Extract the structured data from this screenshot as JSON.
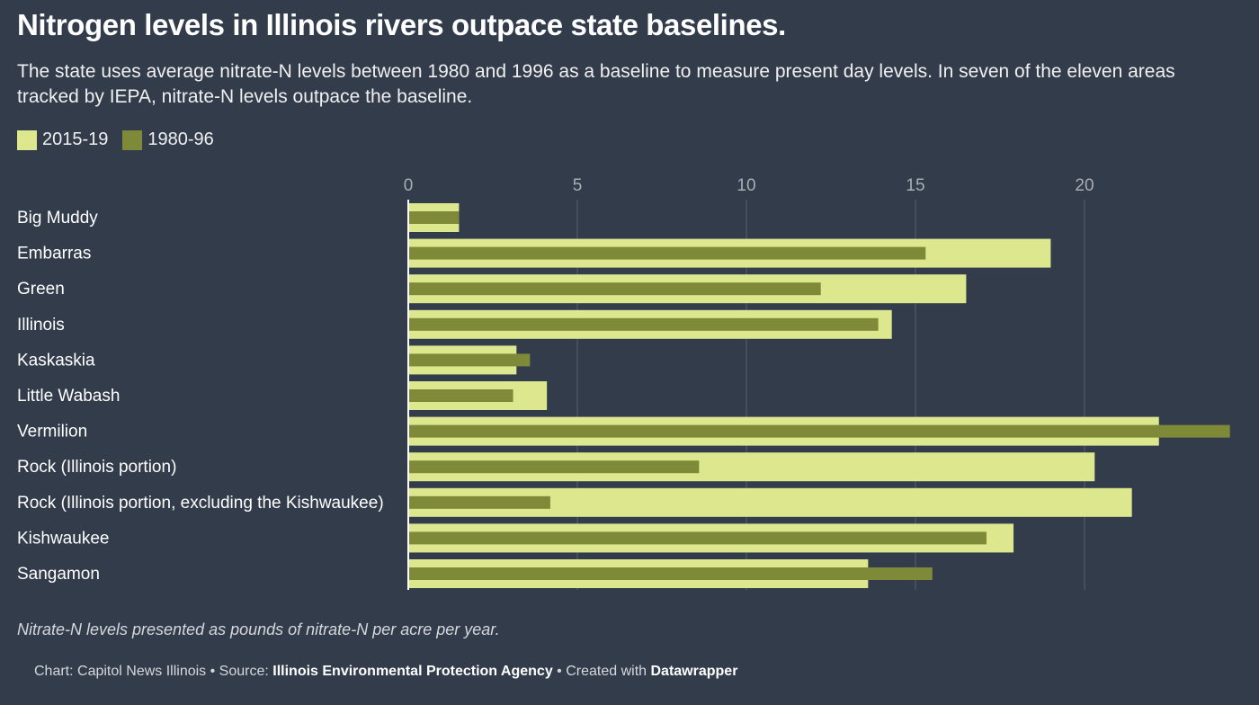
{
  "title": "Nitrogen levels in Illinois rivers outpace state baselines.",
  "subtitle": "The state uses average nitrate-N levels between 1980 and 1996 as a baseline to measure present day levels. In seven of the eleven areas tracked by IEPA, nitrate-N levels outpace the baseline.",
  "note": "Nitrate-N levels presented as pounds of nitrate-N per acre per year.",
  "footer": {
    "chart_prefix": "Chart: Capitol News Illinois • Source: ",
    "source": "Illinois Environmental Protection Agency",
    "created_prefix": " • Created with ",
    "tool": "Datawrapper"
  },
  "colors": {
    "background": "#333c4b",
    "series_recent": "#dde88e",
    "series_baseline": "#7e8a37",
    "grid": "#59606c",
    "tick_text": "#a9aeb6"
  },
  "chart_data": {
    "type": "bar",
    "orientation": "horizontal",
    "categories": [
      "Big Muddy",
      "Embarras",
      "Green",
      "Illinois",
      "Kaskaskia",
      "Little Wabash",
      "Vermilion",
      "Rock (Illinois portion)",
      "Rock (Illinois portion, excluding the Kishwaukee)",
      "Kishwaukee",
      "Sangamon"
    ],
    "series": [
      {
        "name": "2015-19",
        "values": [
          1.5,
          19.0,
          16.5,
          14.3,
          3.2,
          4.1,
          22.2,
          20.3,
          21.4,
          17.9,
          13.6
        ]
      },
      {
        "name": "1980-96",
        "values": [
          1.5,
          15.3,
          12.2,
          13.9,
          3.6,
          3.1,
          24.3,
          8.6,
          4.2,
          17.1,
          15.5
        ]
      }
    ],
    "xlim": [
      0,
      24.5
    ],
    "xticks": [
      0,
      5,
      10,
      15,
      20
    ],
    "grid": true,
    "legend": "top-left"
  }
}
